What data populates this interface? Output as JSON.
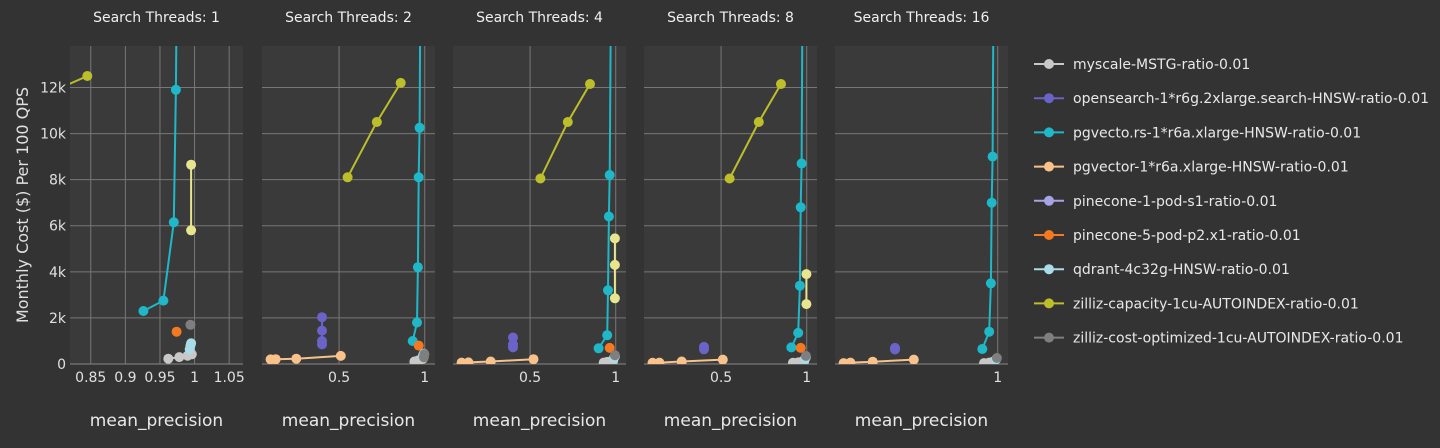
{
  "chart_data": {
    "type": "scatter",
    "ylabel": "Monthly Cost ($) Per 100 QPS",
    "xlabel": "mean_precision",
    "ylim": [
      0,
      13800
    ],
    "y_ticks": [
      0,
      2000,
      4000,
      6000,
      8000,
      10000,
      12000
    ],
    "y_tick_labels": [
      "0",
      "2k",
      "4k",
      "6k",
      "8k",
      "10k",
      "12k"
    ],
    "grid": true,
    "legend_position": "right",
    "series_meta": [
      {
        "key": "myscale",
        "name": "myscale-MSTG-ratio-0.01",
        "color": "#c8c8c8"
      },
      {
        "key": "opensearch",
        "name": "opensearch-1*r6g.2xlarge.search-HNSW-ratio-0.01",
        "color": "#6b63c8"
      },
      {
        "key": "pgvecto",
        "name": "pgvecto.rs-1*r6a.xlarge-HNSW-ratio-0.01",
        "color": "#1fb8c9"
      },
      {
        "key": "pgvector",
        "name": "pgvector-1*r6a.xlarge-HNSW-ratio-0.01",
        "color": "#f8c28a"
      },
      {
        "key": "pinecone1",
        "name": "pinecone-1-pod-s1-ratio-0.01",
        "color": "#a6a3e6"
      },
      {
        "key": "pinecone5",
        "name": "pinecone-5-pod-p2.x1-ratio-0.01",
        "color": "#f47920"
      },
      {
        "key": "qdrant",
        "name": "qdrant-4c32g-HNSW-ratio-0.01",
        "color": "#a9dbe8"
      },
      {
        "key": "zcap",
        "name": "zilliz-capacity-1cu-AUTOINDEX-ratio-0.01",
        "color": "#bdbf2a"
      },
      {
        "key": "zcost",
        "name": "zilliz-cost-optimized-1cu-AUTOINDEX-ratio-0.01",
        "color": "#7f7f7f"
      }
    ],
    "panels": [
      {
        "title": "Search Threads: 1",
        "xlim": [
          0.82,
          1.07
        ],
        "x_ticks": [
          0.85,
          0.9,
          0.95,
          1,
          1.05
        ],
        "x_tick_labels": [
          "0.85",
          "0.9",
          "0.95",
          "1",
          "1.05"
        ],
        "series": {
          "myscale": [
            [
              0.962,
              230
            ],
            [
              0.978,
              300
            ],
            [
              0.99,
              360
            ],
            [
              0.996,
              420
            ]
          ],
          "opensearch": [],
          "pgvecto": [
            [
              0.926,
              2300
            ],
            [
              0.955,
              2750
            ],
            [
              0.97,
              6150
            ],
            [
              0.973,
              11900
            ],
            [
              0.978,
              30000
            ]
          ],
          "pgvector": [],
          "pinecone1": [],
          "pinecone5": [
            [
              0.974,
              1400
            ]
          ],
          "qdrant": [
            [
              0.993,
              640
            ],
            [
              0.994,
              800
            ],
            [
              0.995,
              900
            ]
          ],
          "zcap": [
            [
              0.8,
              11900
            ],
            [
              0.845,
              12500
            ]
          ],
          "zcost": [
            [
              0.994,
              1700
            ]
          ],
          "zilliz_extra": [
            [
              0.995,
              5800
            ],
            [
              0.995,
              8650
            ]
          ]
        }
      },
      {
        "title": "Search Threads: 2",
        "xlim": [
          0.05,
          1.06
        ],
        "x_ticks": [
          0.5,
          1
        ],
        "x_tick_labels": [
          "0.5",
          "1"
        ],
        "series": {
          "myscale": [
            [
              0.94,
              110
            ],
            [
              0.96,
              150
            ],
            [
              0.975,
              190
            ],
            [
              0.99,
              230
            ]
          ],
          "opensearch": [
            [
              0.4,
              850
            ],
            [
              0.4,
              1000
            ],
            [
              0.4,
              1450
            ],
            [
              0.4,
              2030
            ]
          ],
          "pgvecto": [
            [
              0.93,
              1000
            ],
            [
              0.955,
              1800
            ],
            [
              0.96,
              4200
            ],
            [
              0.965,
              8100
            ],
            [
              0.97,
              10250
            ],
            [
              0.985,
              30000
            ]
          ],
          "pgvector": [
            [
              0.1,
              200
            ],
            [
              0.13,
              210
            ],
            [
              0.25,
              230
            ],
            [
              0.51,
              350
            ]
          ],
          "pinecone1": [],
          "pinecone5": [
            [
              0.965,
              800
            ]
          ],
          "qdrant": [
            [
              0.99,
              380
            ],
            [
              0.995,
              450
            ]
          ],
          "zcap": [
            [
              0.55,
              8100
            ],
            [
              0.72,
              10500
            ],
            [
              0.86,
              12200
            ]
          ],
          "zcost": [
            [
              0.995,
              290
            ],
            [
              0.998,
              430
            ]
          ],
          "zilliz_extra": []
        }
      },
      {
        "title": "Search Threads: 4",
        "xlim": [
          0.05,
          1.06
        ],
        "x_ticks": [
          0.5,
          1
        ],
        "x_tick_labels": [
          "0.5",
          "1"
        ],
        "series": {
          "myscale": [
            [
              0.93,
              60
            ],
            [
              0.95,
              90
            ],
            [
              0.97,
              110
            ],
            [
              0.985,
              140
            ]
          ],
          "opensearch": [
            [
              0.4,
              720
            ],
            [
              0.4,
              850
            ],
            [
              0.4,
              1150
            ]
          ],
          "pgvecto": [
            [
              0.9,
              680
            ],
            [
              0.95,
              1250
            ],
            [
              0.955,
              3200
            ],
            [
              0.96,
              6400
            ],
            [
              0.965,
              8200
            ],
            [
              0.985,
              30000
            ]
          ],
          "pgvector": [
            [
              0.1,
              60
            ],
            [
              0.14,
              70
            ],
            [
              0.27,
              110
            ],
            [
              0.52,
              210
            ]
          ],
          "pinecone1": [],
          "pinecone5": [
            [
              0.965,
              700
            ]
          ],
          "qdrant": [
            [
              0.99,
              270
            ],
            [
              0.995,
              330
            ]
          ],
          "zcap": [
            [
              0.56,
              8050
            ],
            [
              0.72,
              10500
            ],
            [
              0.85,
              12150
            ]
          ],
          "zilliz_extra": [
            [
              0.995,
              2850
            ],
            [
              0.995,
              4300
            ],
            [
              0.995,
              5450
            ]
          ],
          "zcost": [
            [
              0.995,
              380
            ]
          ]
        }
      },
      {
        "title": "Search Threads: 8",
        "xlim": [
          0.05,
          1.06
        ],
        "x_ticks": [
          0.5,
          1
        ],
        "x_tick_labels": [
          "0.5",
          "1"
        ],
        "series": {
          "myscale": [
            [
              0.92,
              50
            ],
            [
              0.95,
              70
            ],
            [
              0.97,
              90
            ],
            [
              0.985,
              120
            ]
          ],
          "opensearch": [
            [
              0.4,
              640
            ],
            [
              0.4,
              740
            ]
          ],
          "pgvecto": [
            [
              0.91,
              720
            ],
            [
              0.95,
              1350
            ],
            [
              0.96,
              3400
            ],
            [
              0.965,
              6800
            ],
            [
              0.97,
              8700
            ],
            [
              0.985,
              30000
            ]
          ],
          "pgvector": [
            [
              0.1,
              50
            ],
            [
              0.14,
              60
            ],
            [
              0.27,
              110
            ],
            [
              0.51,
              190
            ]
          ],
          "pinecone1": [],
          "pinecone5": [
            [
              0.965,
              700
            ]
          ],
          "qdrant": [
            [
              0.99,
              230
            ],
            [
              0.995,
              300
            ]
          ],
          "zcap": [
            [
              0.55,
              8050
            ],
            [
              0.72,
              10500
            ],
            [
              0.85,
              12150
            ]
          ],
          "zilliz_extra": [
            [
              0.998,
              2600
            ],
            [
              0.998,
              3900
            ]
          ],
          "zcost": [
            [
              0.995,
              350
            ]
          ]
        }
      },
      {
        "title": "Search Threads: 16",
        "xlim": [
          0.05,
          1.06
        ],
        "x_ticks": [
          1
        ],
        "x_tick_labels": [
          "1"
        ],
        "series": {
          "myscale": [
            [
              0.92,
              40
            ],
            [
              0.95,
              60
            ],
            [
              0.97,
              90
            ]
          ],
          "opensearch": [
            [
              0.4,
              630
            ],
            [
              0.4,
              700
            ]
          ],
          "pgvecto": [
            [
              0.91,
              650
            ],
            [
              0.95,
              1400
            ],
            [
              0.96,
              3500
            ],
            [
              0.965,
              7000
            ],
            [
              0.97,
              9000
            ],
            [
              0.985,
              30000
            ]
          ],
          "pgvector": [
            [
              0.1,
              40
            ],
            [
              0.14,
              60
            ],
            [
              0.27,
              100
            ],
            [
              0.51,
              190
            ]
          ],
          "pinecone1": [],
          "pinecone5": [],
          "qdrant": [
            [
              0.99,
              200
            ]
          ],
          "zcap": [],
          "zilliz_extra": [],
          "zcost": [
            [
              0.995,
              260
            ]
          ]
        }
      }
    ]
  }
}
